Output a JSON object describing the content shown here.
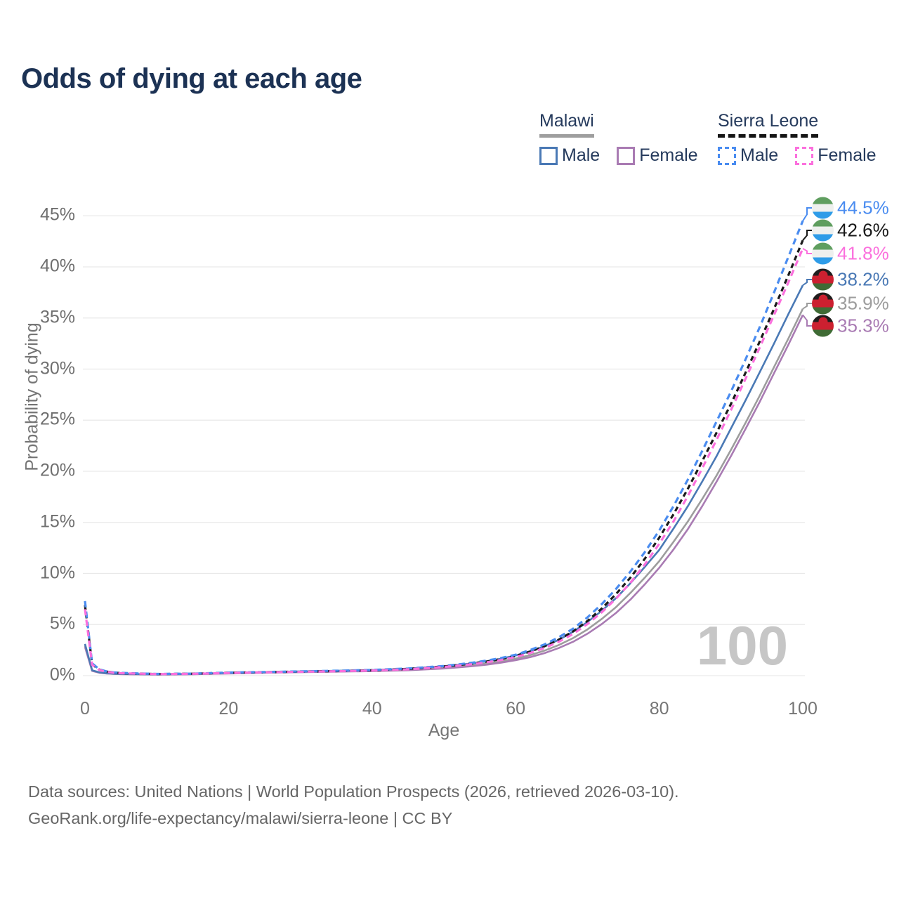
{
  "title": "Odds of dying at each age",
  "watermark_age": "100",
  "source": {
    "line1": "Data sources: United Nations | World Population Prospects (2026, retrieved 2026-03-10).",
    "line2": "GeoRank.org/life-expectancy/malawi/sierra-leone | CC BY"
  },
  "legend": {
    "groups": [
      {
        "name": "Malawi",
        "line_style": "solid",
        "underline_color": "#9e9e9e",
        "items": [
          {
            "label": "Male",
            "series": "malawi-male"
          },
          {
            "label": "Female",
            "series": "malawi-female"
          }
        ]
      },
      {
        "name": "Sierra Leone",
        "line_style": "dashed",
        "underline_color": "#151515",
        "items": [
          {
            "label": "Male",
            "series": "sierra-leone-male"
          },
          {
            "label": "Female",
            "series": "sierra-leone-female"
          }
        ]
      }
    ]
  },
  "flags": {
    "sierra-leone": {
      "stripes": [
        "#5f9e5f",
        "#eef0ee",
        "#2e9ce8"
      ]
    },
    "malawi": {
      "stripes": [
        "#201d1d",
        "#cc2030",
        "#3f6b35"
      ],
      "sun": "#cc2030"
    }
  },
  "chart_data": {
    "type": "line",
    "title": "Odds of dying at each age",
    "xlabel": "Age",
    "ylabel": "Probability of dying",
    "xlim": [
      0,
      100
    ],
    "ylim": [
      0,
      45
    ],
    "grid": "horizontal",
    "legend_position": "top-right",
    "xticks": [
      {
        "value": 0,
        "label": "0"
      },
      {
        "value": 20,
        "label": "20"
      },
      {
        "value": 40,
        "label": "40"
      },
      {
        "value": 60,
        "label": "60"
      },
      {
        "value": 80,
        "label": "80"
      },
      {
        "value": 100,
        "label": "100"
      }
    ],
    "yticks": [
      {
        "value": 0,
        "label": "0%"
      },
      {
        "value": 5,
        "label": "5%"
      },
      {
        "value": 10,
        "label": "10%"
      },
      {
        "value": 15,
        "label": "15%"
      },
      {
        "value": 20,
        "label": "20%"
      },
      {
        "value": 25,
        "label": "25%"
      },
      {
        "value": 30,
        "label": "30%"
      },
      {
        "value": 35,
        "label": "35%"
      },
      {
        "value": 40,
        "label": "40%"
      },
      {
        "value": 45,
        "label": "45%"
      }
    ],
    "series": [
      {
        "id": "sierra-leone-male",
        "country": "Sierra Leone",
        "sex": "male",
        "style": "dashed",
        "color": "#4a8cf0",
        "end_label": {
          "text": "44.5%",
          "value": 44.5,
          "flag": "sierra-leone"
        },
        "points": [
          [
            0,
            7.3
          ],
          [
            1,
            1.2
          ],
          [
            2,
            0.62
          ],
          [
            3,
            0.42
          ],
          [
            4,
            0.32
          ],
          [
            5,
            0.27
          ],
          [
            10,
            0.17
          ],
          [
            15,
            0.2
          ],
          [
            20,
            0.3
          ],
          [
            25,
            0.36
          ],
          [
            30,
            0.42
          ],
          [
            35,
            0.48
          ],
          [
            40,
            0.56
          ],
          [
            45,
            0.7
          ],
          [
            50,
            0.95
          ],
          [
            52,
            1.1
          ],
          [
            54,
            1.27
          ],
          [
            56,
            1.48
          ],
          [
            58,
            1.73
          ],
          [
            60,
            2.05
          ],
          [
            62,
            2.5
          ],
          [
            64,
            3.05
          ],
          [
            66,
            3.75
          ],
          [
            68,
            4.6
          ],
          [
            70,
            5.7
          ],
          [
            72,
            7.0
          ],
          [
            74,
            8.5
          ],
          [
            76,
            10.2
          ],
          [
            78,
            12.1
          ],
          [
            80,
            14.2
          ],
          [
            82,
            16.6
          ],
          [
            84,
            19.2
          ],
          [
            86,
            22.0
          ],
          [
            88,
            24.9
          ],
          [
            90,
            27.8
          ],
          [
            92,
            30.9
          ],
          [
            94,
            34.1
          ],
          [
            96,
            37.5
          ],
          [
            98,
            41.0
          ],
          [
            100,
            44.5
          ]
        ]
      },
      {
        "id": "sierra-leone-both",
        "country": "Sierra Leone",
        "sex": "both",
        "style": "dashed",
        "color": "#1a1a1a",
        "end_label": {
          "text": "42.6%",
          "value": 42.6,
          "flag": "sierra-leone"
        },
        "points": [
          [
            0,
            6.9
          ],
          [
            1,
            1.12
          ],
          [
            2,
            0.58
          ],
          [
            3,
            0.4
          ],
          [
            4,
            0.3
          ],
          [
            5,
            0.25
          ],
          [
            10,
            0.16
          ],
          [
            15,
            0.19
          ],
          [
            20,
            0.28
          ],
          [
            25,
            0.34
          ],
          [
            30,
            0.4
          ],
          [
            35,
            0.45
          ],
          [
            40,
            0.52
          ],
          [
            45,
            0.66
          ],
          [
            50,
            0.9
          ],
          [
            52,
            1.04
          ],
          [
            54,
            1.2
          ],
          [
            56,
            1.39
          ],
          [
            58,
            1.63
          ],
          [
            60,
            1.93
          ],
          [
            62,
            2.35
          ],
          [
            64,
            2.87
          ],
          [
            66,
            3.52
          ],
          [
            68,
            4.33
          ],
          [
            70,
            5.35
          ],
          [
            72,
            6.57
          ],
          [
            74,
            8.0
          ],
          [
            76,
            9.6
          ],
          [
            78,
            11.45
          ],
          [
            80,
            13.5
          ],
          [
            82,
            15.8
          ],
          [
            84,
            18.3
          ],
          [
            86,
            21.0
          ],
          [
            88,
            23.8
          ],
          [
            90,
            26.6
          ],
          [
            92,
            29.6
          ],
          [
            94,
            32.7
          ],
          [
            96,
            35.9
          ],
          [
            98,
            39.2
          ],
          [
            100,
            42.6
          ]
        ]
      },
      {
        "id": "sierra-leone-female",
        "country": "Sierra Leone",
        "sex": "female",
        "style": "dashed",
        "color": "#fb70dd",
        "end_label": {
          "text": "41.8%",
          "value": 41.8,
          "flag": "sierra-leone"
        },
        "points": [
          [
            0,
            6.5
          ],
          [
            1,
            1.05
          ],
          [
            2,
            0.55
          ],
          [
            3,
            0.38
          ],
          [
            4,
            0.28
          ],
          [
            5,
            0.24
          ],
          [
            10,
            0.15
          ],
          [
            15,
            0.18
          ],
          [
            20,
            0.26
          ],
          [
            25,
            0.32
          ],
          [
            30,
            0.38
          ],
          [
            35,
            0.43
          ],
          [
            40,
            0.5
          ],
          [
            45,
            0.62
          ],
          [
            50,
            0.85
          ],
          [
            52,
            0.98
          ],
          [
            54,
            1.13
          ],
          [
            56,
            1.31
          ],
          [
            58,
            1.53
          ],
          [
            60,
            1.82
          ],
          [
            62,
            2.21
          ],
          [
            64,
            2.7
          ],
          [
            66,
            3.31
          ],
          [
            68,
            4.08
          ],
          [
            70,
            5.05
          ],
          [
            72,
            6.2
          ],
          [
            74,
            7.55
          ],
          [
            76,
            9.1
          ],
          [
            78,
            10.9
          ],
          [
            80,
            12.9
          ],
          [
            82,
            15.1
          ],
          [
            84,
            17.6
          ],
          [
            86,
            20.3
          ],
          [
            88,
            23.1
          ],
          [
            90,
            26.0
          ],
          [
            92,
            29.0
          ],
          [
            94,
            32.1
          ],
          [
            96,
            35.3
          ],
          [
            98,
            38.5
          ],
          [
            100,
            41.8
          ]
        ]
      },
      {
        "id": "malawi-male",
        "country": "Malawi",
        "sex": "male",
        "style": "solid",
        "color": "#4a79b5",
        "end_label": {
          "text": "38.2%",
          "value": 38.2,
          "flag": "malawi"
        },
        "points": [
          [
            0,
            3.1
          ],
          [
            1,
            0.52
          ],
          [
            2,
            0.32
          ],
          [
            3,
            0.24
          ],
          [
            4,
            0.19
          ],
          [
            5,
            0.17
          ],
          [
            10,
            0.13
          ],
          [
            15,
            0.17
          ],
          [
            20,
            0.27
          ],
          [
            25,
            0.35
          ],
          [
            30,
            0.42
          ],
          [
            35,
            0.48
          ],
          [
            40,
            0.55
          ],
          [
            45,
            0.68
          ],
          [
            50,
            0.92
          ],
          [
            52,
            1.05
          ],
          [
            54,
            1.21
          ],
          [
            56,
            1.41
          ],
          [
            58,
            1.66
          ],
          [
            60,
            1.97
          ],
          [
            62,
            2.38
          ],
          [
            64,
            2.88
          ],
          [
            66,
            3.5
          ],
          [
            68,
            4.3
          ],
          [
            70,
            5.25
          ],
          [
            72,
            6.35
          ],
          [
            74,
            7.6
          ],
          [
            76,
            9.05
          ],
          [
            78,
            10.65
          ],
          [
            80,
            12.3
          ],
          [
            82,
            14.4
          ],
          [
            84,
            16.6
          ],
          [
            86,
            19.0
          ],
          [
            88,
            21.5
          ],
          [
            90,
            24.2
          ],
          [
            92,
            26.9
          ],
          [
            94,
            29.7
          ],
          [
            96,
            32.5
          ],
          [
            98,
            35.4
          ],
          [
            100,
            38.2
          ]
        ]
      },
      {
        "id": "malawi-both",
        "country": "Malawi",
        "sex": "both",
        "style": "solid",
        "color": "#9d9d9d",
        "end_label": {
          "text": "35.9%",
          "value": 35.9,
          "flag": "malawi"
        },
        "points": [
          [
            0,
            2.95
          ],
          [
            1,
            0.49
          ],
          [
            2,
            0.3
          ],
          [
            3,
            0.22
          ],
          [
            4,
            0.18
          ],
          [
            5,
            0.16
          ],
          [
            10,
            0.12
          ],
          [
            15,
            0.15
          ],
          [
            20,
            0.23
          ],
          [
            25,
            0.31
          ],
          [
            30,
            0.37
          ],
          [
            35,
            0.42
          ],
          [
            40,
            0.47
          ],
          [
            45,
            0.58
          ],
          [
            50,
            0.78
          ],
          [
            52,
            0.89
          ],
          [
            54,
            1.03
          ],
          [
            56,
            1.2
          ],
          [
            58,
            1.41
          ],
          [
            60,
            1.67
          ],
          [
            62,
            2.0
          ],
          [
            64,
            2.45
          ],
          [
            66,
            3.0
          ],
          [
            68,
            3.68
          ],
          [
            70,
            4.52
          ],
          [
            72,
            5.55
          ],
          [
            74,
            6.72
          ],
          [
            76,
            8.1
          ],
          [
            78,
            9.6
          ],
          [
            80,
            11.2
          ],
          [
            82,
            13.1
          ],
          [
            84,
            15.1
          ],
          [
            86,
            17.3
          ],
          [
            88,
            19.6
          ],
          [
            90,
            22.1
          ],
          [
            92,
            24.7
          ],
          [
            94,
            27.4
          ],
          [
            96,
            30.2
          ],
          [
            98,
            33.0
          ],
          [
            100,
            35.9
          ]
        ]
      },
      {
        "id": "malawi-female",
        "country": "Malawi",
        "sex": "female",
        "style": "solid",
        "color": "#a97bb3",
        "end_label": {
          "text": "35.3%",
          "value": 35.3,
          "flag": "malawi"
        },
        "points": [
          [
            0,
            2.8
          ],
          [
            1,
            0.46
          ],
          [
            2,
            0.28
          ],
          [
            3,
            0.21
          ],
          [
            4,
            0.17
          ],
          [
            5,
            0.15
          ],
          [
            10,
            0.11
          ],
          [
            15,
            0.14
          ],
          [
            20,
            0.21
          ],
          [
            25,
            0.28
          ],
          [
            30,
            0.34
          ],
          [
            35,
            0.39
          ],
          [
            40,
            0.44
          ],
          [
            45,
            0.53
          ],
          [
            50,
            0.7
          ],
          [
            52,
            0.81
          ],
          [
            54,
            0.93
          ],
          [
            56,
            1.08
          ],
          [
            58,
            1.27
          ],
          [
            60,
            1.51
          ],
          [
            62,
            1.81
          ],
          [
            64,
            2.2
          ],
          [
            66,
            2.7
          ],
          [
            68,
            3.32
          ],
          [
            70,
            4.1
          ],
          [
            72,
            5.05
          ],
          [
            74,
            6.15
          ],
          [
            76,
            7.45
          ],
          [
            78,
            8.95
          ],
          [
            80,
            10.55
          ],
          [
            82,
            12.35
          ],
          [
            84,
            14.35
          ],
          [
            86,
            16.6
          ],
          [
            88,
            19.0
          ],
          [
            90,
            21.5
          ],
          [
            92,
            24.1
          ],
          [
            94,
            26.8
          ],
          [
            96,
            29.6
          ],
          [
            98,
            32.4
          ],
          [
            100,
            35.3
          ]
        ]
      }
    ]
  }
}
